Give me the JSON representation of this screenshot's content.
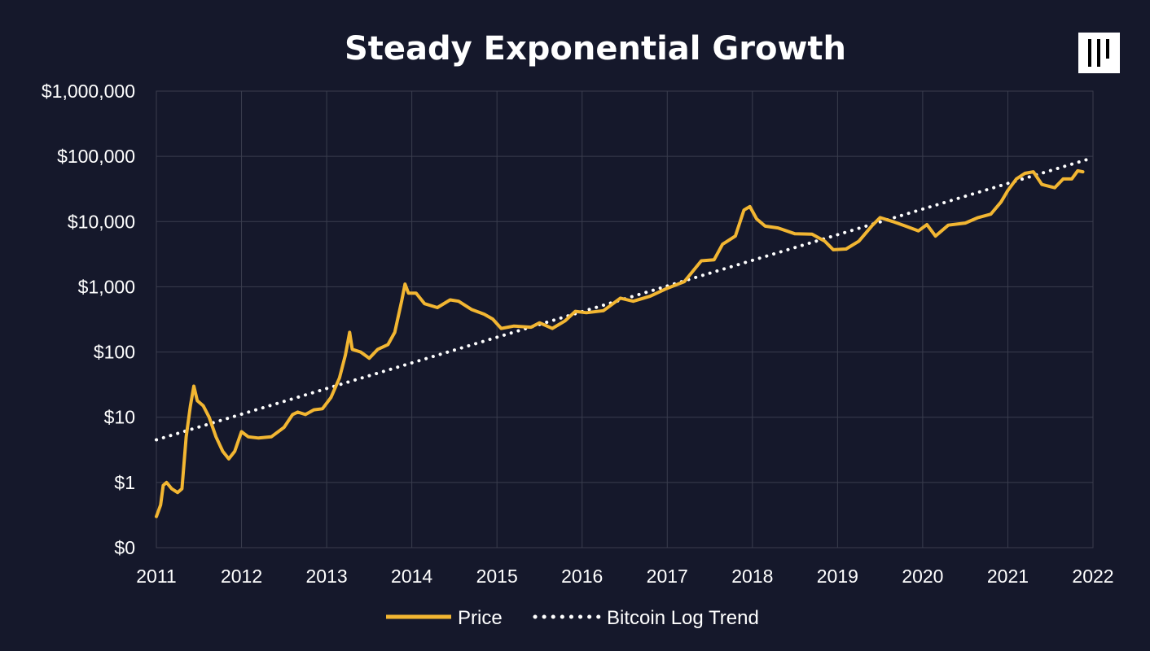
{
  "colors": {
    "background": "#15182b",
    "price": "#f2b632",
    "trend": "#ffffff",
    "grid": "#3a3d4e",
    "logo_bg": "#ffffff",
    "logo_fg": "#000000"
  },
  "logo": {
    "icon": "pantera-logo-icon"
  },
  "chart_data": {
    "type": "line",
    "title": "Steady Exponential Growth",
    "xlabel": "",
    "ylabel": "",
    "x_scale": "linear-time",
    "y_scale": "log",
    "xlim": [
      2011,
      2022
    ],
    "ylim": [
      0.1,
      1000000
    ],
    "grid": true,
    "legend_position": "bottom-center",
    "y_ticks": [
      {
        "value": 0.1,
        "label": "$0"
      },
      {
        "value": 1,
        "label": "$1"
      },
      {
        "value": 10,
        "label": "$10"
      },
      {
        "value": 100,
        "label": "$100"
      },
      {
        "value": 1000,
        "label": "$1,000"
      },
      {
        "value": 10000,
        "label": "$10,000"
      },
      {
        "value": 100000,
        "label": "$100,000"
      },
      {
        "value": 1000000,
        "label": "$1,000,000"
      }
    ],
    "x_ticks": [
      {
        "value": 2011,
        "label": "2011"
      },
      {
        "value": 2012,
        "label": "2012"
      },
      {
        "value": 2013,
        "label": "2013"
      },
      {
        "value": 2014,
        "label": "2014"
      },
      {
        "value": 2015,
        "label": "2015"
      },
      {
        "value": 2016,
        "label": "2016"
      },
      {
        "value": 2017,
        "label": "2017"
      },
      {
        "value": 2018,
        "label": "2018"
      },
      {
        "value": 2019,
        "label": "2019"
      },
      {
        "value": 2020,
        "label": "2020"
      },
      {
        "value": 2021,
        "label": "2021"
      },
      {
        "value": 2022,
        "label": "2022"
      }
    ],
    "series": [
      {
        "name": "Price",
        "style": "solid",
        "points": [
          [
            2011.0,
            0.3
          ],
          [
            2011.05,
            0.45
          ],
          [
            2011.08,
            0.9
          ],
          [
            2011.12,
            1.0
          ],
          [
            2011.18,
            0.8
          ],
          [
            2011.25,
            0.7
          ],
          [
            2011.3,
            0.8
          ],
          [
            2011.35,
            5.0
          ],
          [
            2011.4,
            15
          ],
          [
            2011.44,
            30
          ],
          [
            2011.48,
            18
          ],
          [
            2011.55,
            15
          ],
          [
            2011.62,
            10
          ],
          [
            2011.7,
            5
          ],
          [
            2011.78,
            3
          ],
          [
            2011.85,
            2.3
          ],
          [
            2011.92,
            3.0
          ],
          [
            2012.0,
            6
          ],
          [
            2012.08,
            5
          ],
          [
            2012.2,
            4.8
          ],
          [
            2012.35,
            5.0
          ],
          [
            2012.5,
            7
          ],
          [
            2012.6,
            11
          ],
          [
            2012.66,
            12
          ],
          [
            2012.75,
            11
          ],
          [
            2012.85,
            13
          ],
          [
            2012.95,
            13.5
          ],
          [
            2013.05,
            20
          ],
          [
            2013.15,
            40
          ],
          [
            2013.22,
            90
          ],
          [
            2013.27,
            200
          ],
          [
            2013.3,
            110
          ],
          [
            2013.4,
            100
          ],
          [
            2013.5,
            80
          ],
          [
            2013.6,
            110
          ],
          [
            2013.72,
            130
          ],
          [
            2013.8,
            200
          ],
          [
            2013.88,
            600
          ],
          [
            2013.92,
            1100
          ],
          [
            2013.96,
            800
          ],
          [
            2014.05,
            800
          ],
          [
            2014.15,
            550
          ],
          [
            2014.3,
            480
          ],
          [
            2014.45,
            630
          ],
          [
            2014.55,
            600
          ],
          [
            2014.7,
            450
          ],
          [
            2014.85,
            380
          ],
          [
            2014.95,
            320
          ],
          [
            2015.05,
            230
          ],
          [
            2015.2,
            250
          ],
          [
            2015.4,
            240
          ],
          [
            2015.5,
            280
          ],
          [
            2015.65,
            230
          ],
          [
            2015.8,
            300
          ],
          [
            2015.92,
            420
          ],
          [
            2016.05,
            400
          ],
          [
            2016.25,
            430
          ],
          [
            2016.45,
            670
          ],
          [
            2016.6,
            600
          ],
          [
            2016.8,
            720
          ],
          [
            2017.0,
            950
          ],
          [
            2017.2,
            1200
          ],
          [
            2017.4,
            2500
          ],
          [
            2017.55,
            2600
          ],
          [
            2017.65,
            4500
          ],
          [
            2017.8,
            6000
          ],
          [
            2017.9,
            15000
          ],
          [
            2017.97,
            17000
          ],
          [
            2018.05,
            11000
          ],
          [
            2018.15,
            8500
          ],
          [
            2018.3,
            8000
          ],
          [
            2018.5,
            6500
          ],
          [
            2018.7,
            6400
          ],
          [
            2018.85,
            5000
          ],
          [
            2018.95,
            3700
          ],
          [
            2019.1,
            3800
          ],
          [
            2019.25,
            5000
          ],
          [
            2019.4,
            8500
          ],
          [
            2019.5,
            11500
          ],
          [
            2019.65,
            10000
          ],
          [
            2019.8,
            8500
          ],
          [
            2019.95,
            7200
          ],
          [
            2020.05,
            9000
          ],
          [
            2020.15,
            6000
          ],
          [
            2020.3,
            8800
          ],
          [
            2020.5,
            9500
          ],
          [
            2020.65,
            11500
          ],
          [
            2020.8,
            13000
          ],
          [
            2020.92,
            20000
          ],
          [
            2021.0,
            30000
          ],
          [
            2021.1,
            45000
          ],
          [
            2021.2,
            55000
          ],
          [
            2021.3,
            58000
          ],
          [
            2021.4,
            37000
          ],
          [
            2021.55,
            33000
          ],
          [
            2021.65,
            45000
          ],
          [
            2021.75,
            45000
          ],
          [
            2021.82,
            60000
          ],
          [
            2021.88,
            58000
          ]
        ]
      },
      {
        "name": "Bitcoin Log Trend",
        "style": "dotted",
        "points": [
          [
            2011.0,
            4.5
          ],
          [
            2022.0,
            95000
          ]
        ]
      }
    ]
  }
}
